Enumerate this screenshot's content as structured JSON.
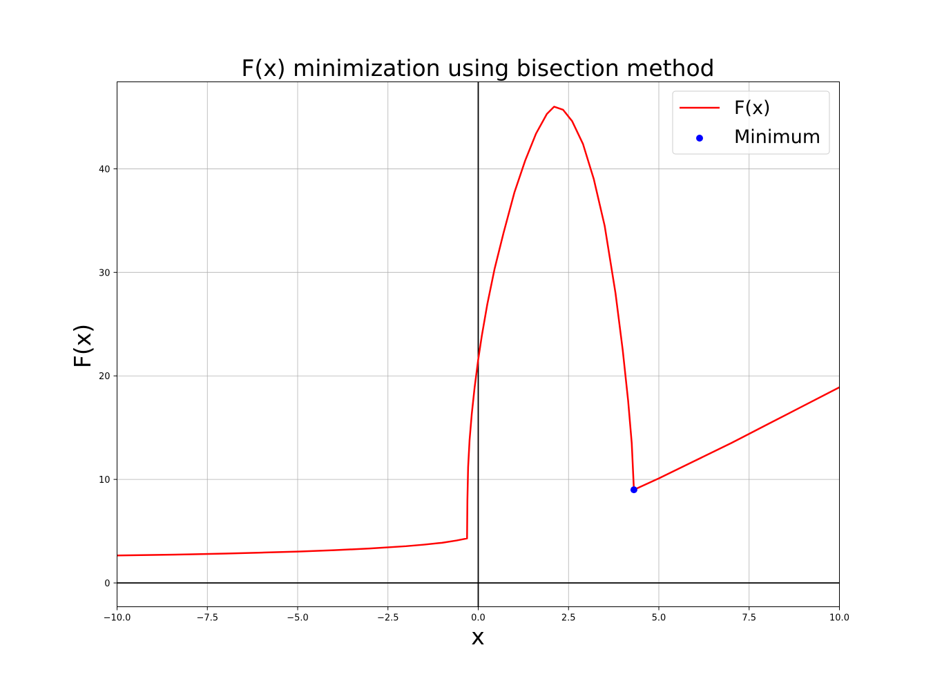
{
  "chart_data": {
    "type": "line",
    "title": "F(x) minimization using bisection method",
    "xlabel": "x",
    "ylabel": "F(x)",
    "xlim": [
      -10,
      10
    ],
    "ylim": [
      -2.3,
      48.4
    ],
    "xticks": [
      -10,
      -7.5,
      -5,
      -2.5,
      0,
      2.5,
      5,
      7.5,
      10
    ],
    "xtick_labels": [
      "−10.0",
      "−7.5",
      "−5.0",
      "−2.5",
      "0.0",
      "2.5",
      "5.0",
      "7.5",
      "10.0"
    ],
    "yticks": [
      0,
      10,
      20,
      30,
      40
    ],
    "ytick_labels": [
      "0",
      "10",
      "20",
      "30",
      "40"
    ],
    "grid": true,
    "zero_lines": true,
    "legend_position": "top-right",
    "series": [
      {
        "name": "F(x)",
        "kind": "line",
        "color": "#ff0000",
        "points": [
          [
            -10,
            2.65
          ],
          [
            -9,
            2.7
          ],
          [
            -8,
            2.76
          ],
          [
            -7,
            2.84
          ],
          [
            -6,
            2.93
          ],
          [
            -5,
            3.03
          ],
          [
            -4,
            3.16
          ],
          [
            -3,
            3.33
          ],
          [
            -2,
            3.55
          ],
          [
            -1.5,
            3.7
          ],
          [
            -1,
            3.88
          ],
          [
            -0.6,
            4.1
          ],
          [
            -0.31,
            4.3
          ],
          [
            -0.3,
            8.0
          ],
          [
            -0.28,
            11.2
          ],
          [
            -0.24,
            13.8
          ],
          [
            -0.18,
            16.3
          ],
          [
            -0.1,
            18.9
          ],
          [
            0,
            21.6
          ],
          [
            0.1,
            23.9
          ],
          [
            0.25,
            26.9
          ],
          [
            0.45,
            30.3
          ],
          [
            0.7,
            33.8
          ],
          [
            1.0,
            37.7
          ],
          [
            1.3,
            40.8
          ],
          [
            1.6,
            43.4
          ],
          [
            1.9,
            45.3
          ],
          [
            2.1,
            46.0
          ],
          [
            2.35,
            45.7
          ],
          [
            2.6,
            44.6
          ],
          [
            2.9,
            42.4
          ],
          [
            3.2,
            39.0
          ],
          [
            3.5,
            34.5
          ],
          [
            3.8,
            28.0
          ],
          [
            4.0,
            22.5
          ],
          [
            4.15,
            17.6
          ],
          [
            4.25,
            13.5
          ],
          [
            4.31,
            9.0
          ],
          [
            5,
            10.1
          ],
          [
            6,
            11.8
          ],
          [
            7,
            13.5
          ],
          [
            8,
            15.3
          ],
          [
            9,
            17.1
          ],
          [
            10,
            18.9
          ]
        ]
      },
      {
        "name": "Minimum",
        "kind": "scatter",
        "color": "#0000ff",
        "points": [
          [
            4.31,
            9.0
          ]
        ]
      }
    ]
  }
}
